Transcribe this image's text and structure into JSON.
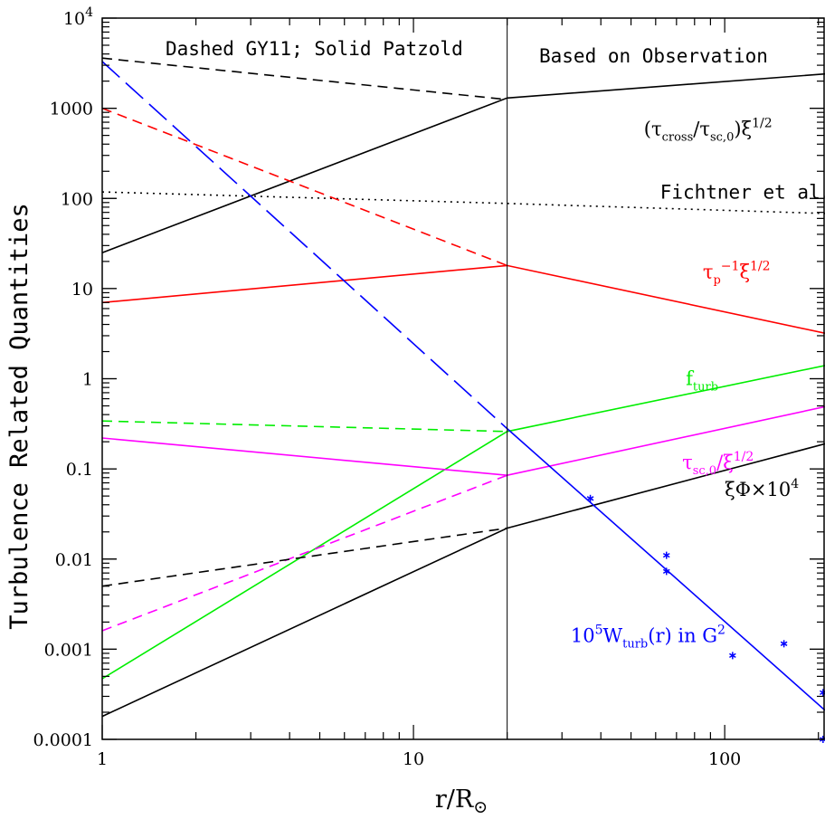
{
  "chart_data": {
    "type": "line",
    "xlabel": "r/R⊙",
    "ylabel": "Turbulence Related Quantities",
    "x_scale": "log",
    "y_scale": "log",
    "xlim": [
      1,
      210
    ],
    "ylim": [
      0.0001,
      10000
    ],
    "x_ticks": [
      {
        "value": 1,
        "label": "1"
      },
      {
        "value": 10,
        "label": "10"
      },
      {
        "value": 100,
        "label": "100"
      }
    ],
    "y_ticks": [
      {
        "value": 0.0001,
        "label": "0.0001"
      },
      {
        "value": 0.001,
        "label": "0.001"
      },
      {
        "value": 0.01,
        "label": "0.01"
      },
      {
        "value": 0.1,
        "label": "0.1"
      },
      {
        "value": 1,
        "label": "1"
      },
      {
        "value": 10,
        "label": "10"
      },
      {
        "value": 100,
        "label": "100"
      },
      {
        "value": 1000,
        "label": "1000"
      },
      {
        "value": 10000,
        "label": "10^4"
      }
    ],
    "divider_x": 20,
    "notes": {
      "left": "Dashed GY11; Solid Patzold",
      "right": "Based on Observation"
    },
    "colors": {
      "black": "#000000",
      "red": "#ff0000",
      "green": "#00ee00",
      "magenta": "#ff00ff",
      "blue": "#0000ff"
    },
    "series": [
      {
        "key": "cross_patzold",
        "color": "black",
        "style": "solid",
        "points": [
          [
            1,
            25
          ],
          [
            20,
            1300
          ],
          [
            210,
            2400
          ]
        ]
      },
      {
        "key": "cross_gy11",
        "color": "black",
        "style": "dashed",
        "points": [
          [
            1,
            3600
          ],
          [
            20,
            1250
          ]
        ]
      },
      {
        "key": "fichtner",
        "color": "black",
        "style": "dotted",
        "points": [
          [
            1,
            118
          ],
          [
            20,
            88
          ],
          [
            210,
            68
          ]
        ]
      },
      {
        "key": "taup_patzold",
        "color": "red",
        "style": "solid",
        "points": [
          [
            1,
            7
          ],
          [
            20,
            18
          ],
          [
            210,
            3.2
          ]
        ]
      },
      {
        "key": "taup_gy11",
        "color": "red",
        "style": "dashed",
        "points": [
          [
            1,
            1000
          ],
          [
            20,
            18
          ]
        ]
      },
      {
        "key": "fturb_patzold",
        "color": "green",
        "style": "solid",
        "points": [
          [
            1,
            0.00047
          ],
          [
            20,
            0.26
          ],
          [
            210,
            1.4
          ]
        ]
      },
      {
        "key": "fturb_gy11",
        "color": "green",
        "style": "dashed",
        "points": [
          [
            1,
            0.34
          ],
          [
            20,
            0.26
          ]
        ]
      },
      {
        "key": "tausc_patzold",
        "color": "magenta",
        "style": "solid",
        "points": [
          [
            1,
            0.22
          ],
          [
            20,
            0.085
          ],
          [
            210,
            0.49
          ]
        ]
      },
      {
        "key": "tausc_gy11",
        "color": "magenta",
        "style": "dashed",
        "points": [
          [
            1,
            0.0016
          ],
          [
            20,
            0.085
          ]
        ]
      },
      {
        "key": "xiphi_patzold",
        "color": "black",
        "style": "solid",
        "points": [
          [
            1,
            0.00018
          ],
          [
            20,
            0.022
          ],
          [
            210,
            0.19
          ]
        ]
      },
      {
        "key": "xiphi_gy11",
        "color": "black",
        "style": "dashed",
        "points": [
          [
            1,
            0.005
          ],
          [
            20,
            0.022
          ]
        ]
      },
      {
        "key": "wturb_gy11",
        "color": "blue",
        "style": "longdash",
        "points": [
          [
            1,
            3300
          ],
          [
            20,
            0.28
          ]
        ]
      },
      {
        "key": "wturb_patzold",
        "color": "blue",
        "style": "solid",
        "points": [
          [
            20,
            0.28
          ],
          [
            210,
            0.00021
          ]
        ]
      }
    ],
    "observations": {
      "color": "blue",
      "points": [
        [
          37,
          0.047
        ],
        [
          65,
          0.011
        ],
        [
          65,
          0.0073
        ],
        [
          106,
          0.00085
        ],
        [
          155,
          0.00115
        ],
        [
          207,
          0.00033
        ],
        [
          207,
          0.0001
        ]
      ]
    },
    "curve_labels": {
      "cross": {
        "x": 55,
        "y": 500,
        "color": "black"
      },
      "fichtner": {
        "x": 62,
        "y": 100,
        "color": "black",
        "text": "Fichtner et al."
      },
      "taup": {
        "x": 85,
        "y": 13,
        "color": "red"
      },
      "fturb": {
        "x": 75,
        "y": 0.85,
        "color": "green"
      },
      "tausc": {
        "x": 73,
        "y": 0.1,
        "color": "magenta"
      },
      "xiphi": {
        "x": 100,
        "y": 0.05,
        "color": "black"
      },
      "wturb": {
        "x": 32,
        "y": 0.0012,
        "color": "blue"
      }
    }
  }
}
